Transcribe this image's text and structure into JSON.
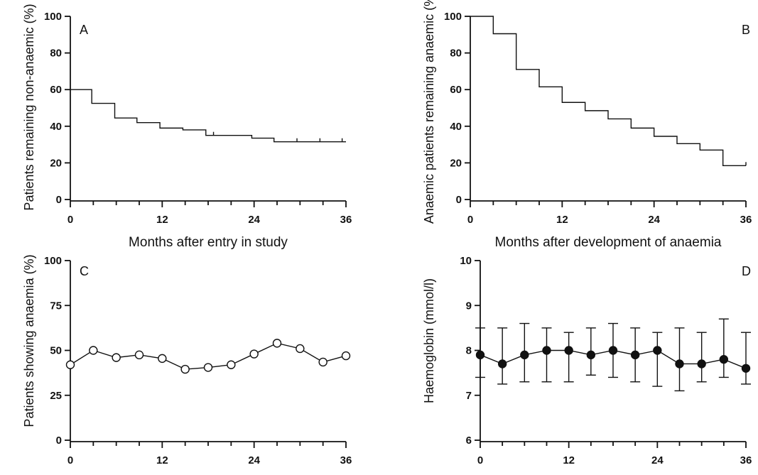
{
  "chart_data": [
    {
      "type": "line",
      "panel": "A",
      "step": true,
      "ylabel": "Patients remaining non-anaemic (%)",
      "xlabel": "Months after entry in study",
      "xlim": [
        0,
        36
      ],
      "ylim": [
        0,
        100
      ],
      "xticks": [
        "0",
        "12",
        "24",
        "36"
      ],
      "yticks": [
        "0",
        "20",
        "40",
        "60",
        "80",
        "100"
      ],
      "x": [
        0,
        2.8,
        5.8,
        8.7,
        11.7,
        14.7,
        17.7,
        20.7,
        23.7,
        26.6,
        29.6,
        32.6,
        36
      ],
      "y": [
        60,
        52.5,
        44.5,
        42,
        39,
        38,
        35,
        35,
        33.5,
        31.5,
        31.5,
        31.5,
        31.5
      ],
      "censor_marks_x": [
        18.7,
        29.6,
        32.6,
        35.5
      ]
    },
    {
      "type": "line",
      "panel": "B",
      "step": true,
      "ylabel": "Anaemic patients remaining anaemic (%)",
      "xlabel": "Months after development of anaemia",
      "xlim": [
        0,
        36
      ],
      "ylim": [
        0,
        100
      ],
      "xticks": [
        "0",
        "12",
        "24",
        "36"
      ],
      "yticks": [
        "0",
        "20",
        "40",
        "60",
        "80",
        "100"
      ],
      "x": [
        0,
        3,
        6,
        9,
        12,
        15,
        18,
        21,
        24,
        27,
        30,
        33,
        36
      ],
      "y": [
        100,
        90.5,
        71,
        61.5,
        53,
        48.5,
        44,
        39,
        34.5,
        30.5,
        27,
        18.5,
        18.5
      ],
      "censor_marks_x": [
        36
      ]
    },
    {
      "type": "line",
      "panel": "C",
      "marker": "open-circle",
      "ylabel": "Patients showing anaemia (%)",
      "xlabel": "",
      "xlim": [
        0,
        36
      ],
      "ylim": [
        0,
        100
      ],
      "xticks": [
        "0",
        "12",
        "24",
        "36"
      ],
      "yticks": [
        "0",
        "25",
        "50",
        "75",
        "100"
      ],
      "x": [
        0,
        3,
        6,
        9,
        12,
        15,
        18,
        21,
        24,
        27,
        30,
        33,
        36
      ],
      "y": [
        42,
        50,
        46,
        47.5,
        45.5,
        39.5,
        40.5,
        42,
        48,
        54,
        51,
        43.5,
        47
      ]
    },
    {
      "type": "line",
      "panel": "D",
      "marker": "filled-circle",
      "error_bars": true,
      "ylabel": "Haemoglobin (mmol/l)",
      "xlabel": "",
      "xlim": [
        0,
        36
      ],
      "ylim": [
        6,
        10
      ],
      "xticks": [
        "0",
        "12",
        "24",
        "36"
      ],
      "yticks": [
        "6",
        "7",
        "8",
        "9",
        "10"
      ],
      "x": [
        0,
        3,
        6,
        9,
        12,
        15,
        18,
        21,
        24,
        27,
        30,
        33,
        36
      ],
      "y": [
        7.9,
        7.7,
        7.9,
        8.0,
        8.0,
        7.9,
        8.0,
        7.9,
        8.0,
        7.7,
        7.7,
        7.8,
        7.6
      ],
      "err_low": [
        7.4,
        7.25,
        7.3,
        7.3,
        7.3,
        7.45,
        7.4,
        7.3,
        7.2,
        7.1,
        7.3,
        7.4,
        7.25
      ],
      "err_high": [
        8.5,
        8.5,
        8.6,
        8.5,
        8.4,
        8.5,
        8.6,
        8.5,
        8.4,
        8.5,
        8.4,
        8.7,
        8.4
      ]
    }
  ]
}
